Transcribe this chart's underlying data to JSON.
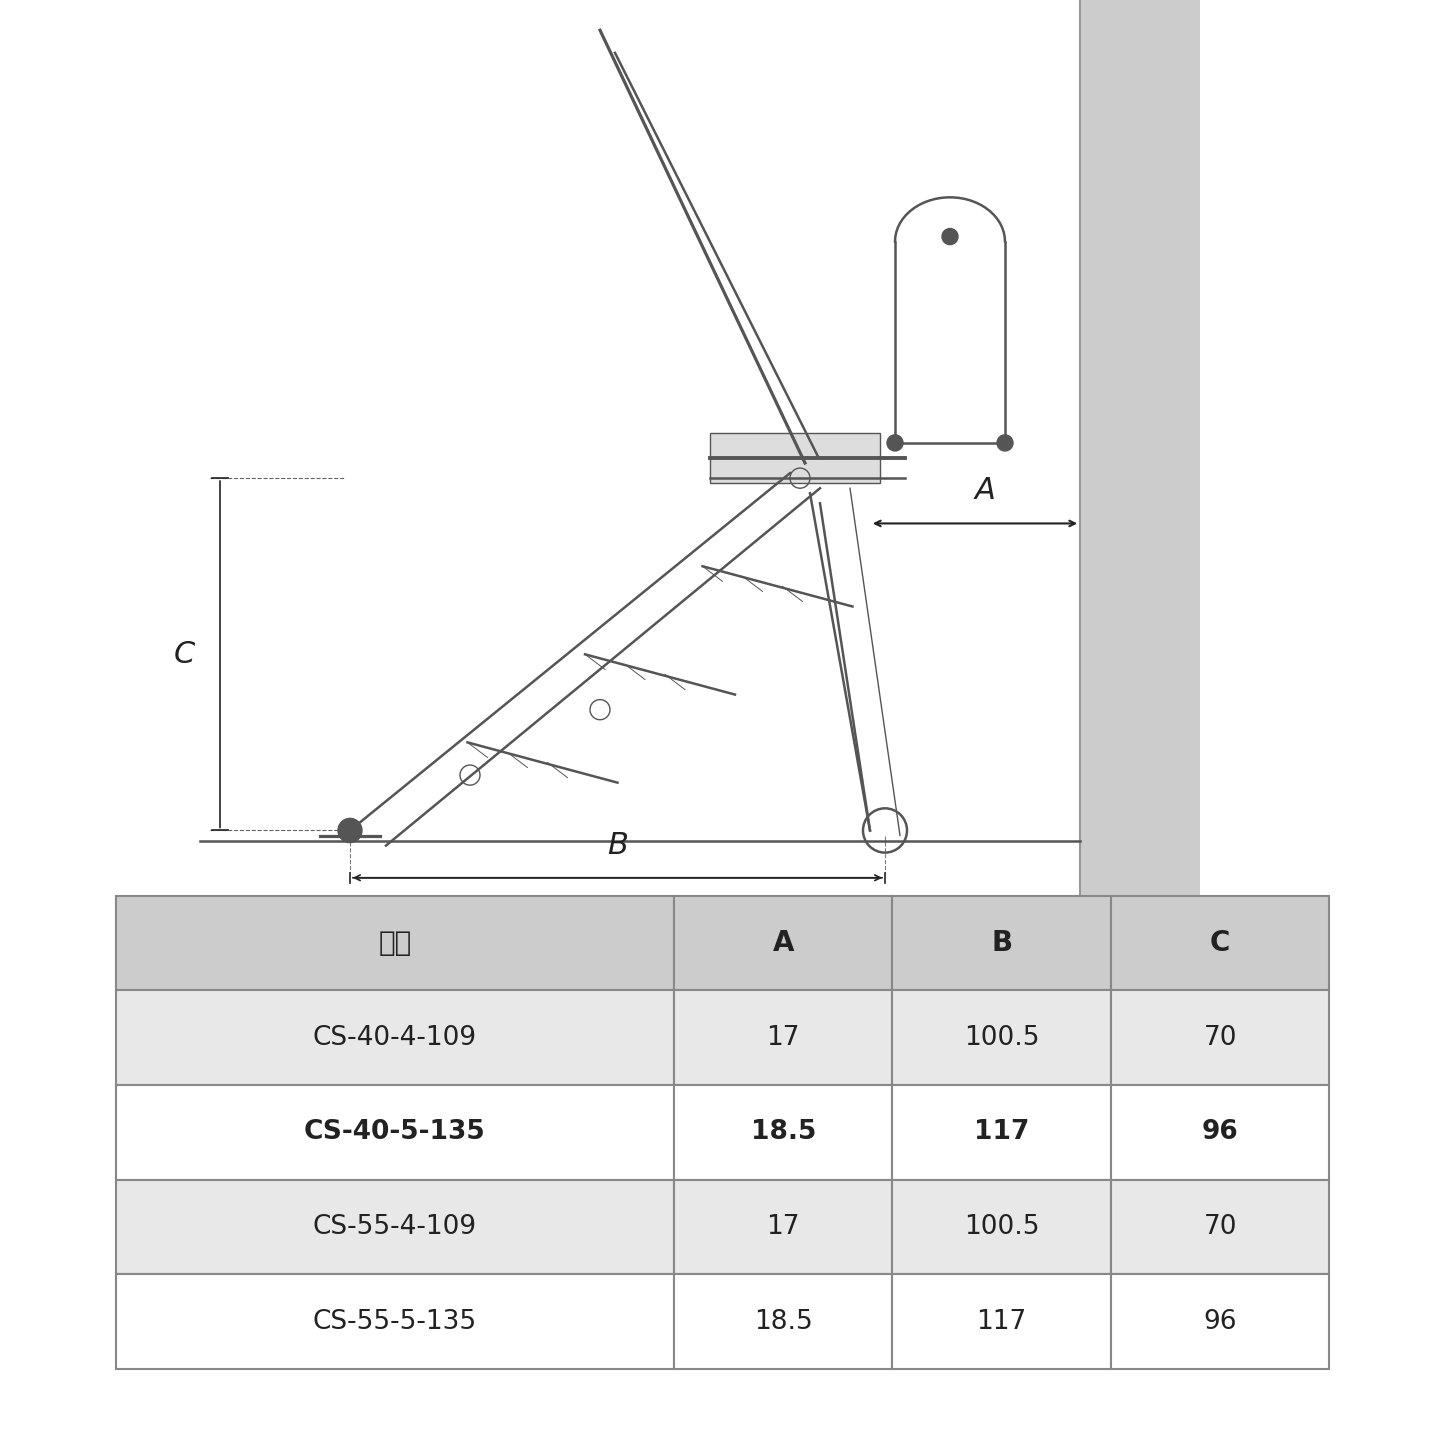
{
  "table_headers": [
    "型式",
    "A",
    "B",
    "C"
  ],
  "table_rows": [
    [
      "CS-40-4-109",
      "17",
      "100.5",
      "70"
    ],
    [
      "CS-40-5-135",
      "18.5",
      "117",
      "96"
    ],
    [
      "CS-55-4-109",
      "17",
      "100.5",
      "70"
    ],
    [
      "CS-55-5-135",
      "18.5",
      "117",
      "96"
    ]
  ],
  "header_bg": "#cccccc",
  "row_bg_alt": "#e8e8e8",
  "row_bg_norm": "#ffffff",
  "highlight_row": 1,
  "line_color": "#555555",
  "dim_color": "#222222",
  "wall_color": "#cccccc",
  "bg_color": "#ffffff",
  "label_A": "A",
  "label_B": "B",
  "label_C": "C"
}
